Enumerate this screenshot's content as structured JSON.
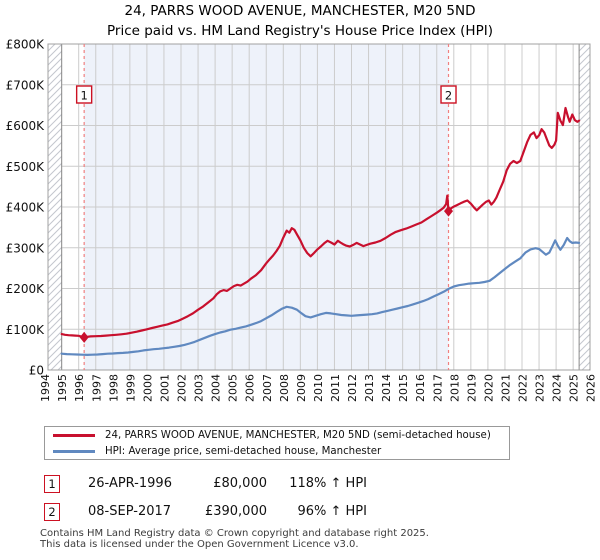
{
  "title": "24, PARRS WOOD AVENUE, MANCHESTER, M20 5ND",
  "subtitle": "Price paid vs. HM Land Registry's House Price Index (HPI)",
  "colors": {
    "price_line": "#c8102e",
    "hpi_line": "#6089c0",
    "ownership_shading": "#eef2fa",
    "grid": "#cccccc",
    "frame": "#a0a0a0",
    "hatch": "#c3c7ce",
    "hatch_boundary": "#8a8a8a",
    "dashed_marker": "#f08080",
    "marker_box_border": "#cc1122"
  },
  "chart_data": {
    "type": "line",
    "title": "24, PARRS WOOD AVENUE, MANCHESTER, M20 5ND",
    "subtitle": "Price paid vs. HM Land Registry's House Price Index (HPI)",
    "x_axis": {
      "tick_years": [
        1994,
        1995,
        1996,
        1997,
        1998,
        1999,
        2000,
        2001,
        2002,
        2003,
        2004,
        2005,
        2006,
        2007,
        2008,
        2009,
        2010,
        2011,
        2012,
        2013,
        2014,
        2015,
        2016,
        2017,
        2018,
        2019,
        2020,
        2021,
        2022,
        2023,
        2024,
        2025,
        2026
      ],
      "range_years": [
        1994.0,
        2026.6
      ]
    },
    "y_axis": {
      "tick_labels": [
        "£0",
        "£100K",
        "£200K",
        "£300K",
        "£400K",
        "£500K",
        "£600K",
        "£700K",
        "£800K"
      ],
      "tick_values_k": [
        0,
        100,
        200,
        300,
        400,
        500,
        600,
        700,
        800
      ],
      "range_k": [
        0,
        800
      ]
    },
    "hpi_data_span_years": [
      1995.0,
      2025.35
    ],
    "ownership_span_years": [
      1996.32,
      2017.69
    ],
    "sale_markers": [
      {
        "label": "1",
        "year": 1996.32,
        "value_k": 80
      },
      {
        "label": "2",
        "year": 2017.69,
        "value_k": 390
      }
    ],
    "series": [
      {
        "id": "price",
        "name": "24, PARRS WOOD AVENUE, MANCHESTER, M20 5ND (semi-detached house)",
        "color": "#c8102e",
        "points_year_valueK": [
          [
            1995.0,
            88
          ],
          [
            1995.2,
            86.5
          ],
          [
            1995.4,
            85.5
          ],
          [
            1995.6,
            85
          ],
          [
            1995.8,
            84.5
          ],
          [
            1996.0,
            84
          ],
          [
            1996.15,
            82
          ],
          [
            1996.32,
            80
          ],
          [
            1996.5,
            81.5
          ],
          [
            1996.7,
            82.5
          ],
          [
            1997.0,
            83
          ],
          [
            1997.3,
            83.5
          ],
          [
            1997.6,
            84.5
          ],
          [
            1997.9,
            85.5
          ],
          [
            1998.2,
            86.5
          ],
          [
            1998.5,
            87.5
          ],
          [
            1998.8,
            89
          ],
          [
            1999.1,
            91.5
          ],
          [
            1999.4,
            94
          ],
          [
            1999.7,
            97
          ],
          [
            2000.0,
            100
          ],
          [
            2000.3,
            103
          ],
          [
            2000.6,
            106
          ],
          [
            2000.9,
            109
          ],
          [
            2001.2,
            112
          ],
          [
            2001.5,
            116
          ],
          [
            2001.8,
            120
          ],
          [
            2002.1,
            126
          ],
          [
            2002.4,
            132
          ],
          [
            2002.7,
            139
          ],
          [
            2003.0,
            148
          ],
          [
            2003.3,
            156
          ],
          [
            2003.6,
            166
          ],
          [
            2003.9,
            176
          ],
          [
            2004.1,
            186
          ],
          [
            2004.3,
            193
          ],
          [
            2004.5,
            196
          ],
          [
            2004.7,
            194
          ],
          [
            2004.9,
            200
          ],
          [
            2005.1,
            206
          ],
          [
            2005.3,
            209
          ],
          [
            2005.5,
            207
          ],
          [
            2005.7,
            212
          ],
          [
            2005.9,
            217
          ],
          [
            2006.1,
            224
          ],
          [
            2006.4,
            233
          ],
          [
            2006.7,
            245
          ],
          [
            2007.0,
            262
          ],
          [
            2007.2,
            272
          ],
          [
            2007.4,
            281
          ],
          [
            2007.6,
            292
          ],
          [
            2007.8,
            305
          ],
          [
            2008.0,
            325
          ],
          [
            2008.2,
            342
          ],
          [
            2008.35,
            337
          ],
          [
            2008.5,
            348
          ],
          [
            2008.65,
            344
          ],
          [
            2008.8,
            333
          ],
          [
            2009.0,
            318
          ],
          [
            2009.2,
            300
          ],
          [
            2009.4,
            287
          ],
          [
            2009.6,
            279
          ],
          [
            2009.8,
            287
          ],
          [
            2010.0,
            296
          ],
          [
            2010.2,
            303
          ],
          [
            2010.4,
            311
          ],
          [
            2010.6,
            317
          ],
          [
            2010.8,
            313
          ],
          [
            2011.0,
            308
          ],
          [
            2011.2,
            317
          ],
          [
            2011.35,
            313
          ],
          [
            2011.5,
            309
          ],
          [
            2011.7,
            305
          ],
          [
            2011.9,
            303
          ],
          [
            2012.1,
            307
          ],
          [
            2012.3,
            312
          ],
          [
            2012.5,
            308
          ],
          [
            2012.7,
            304
          ],
          [
            2012.9,
            307
          ],
          [
            2013.1,
            310
          ],
          [
            2013.4,
            313
          ],
          [
            2013.7,
            317
          ],
          [
            2014.0,
            324
          ],
          [
            2014.3,
            332
          ],
          [
            2014.6,
            339
          ],
          [
            2014.9,
            343
          ],
          [
            2015.2,
            347
          ],
          [
            2015.5,
            352
          ],
          [
            2015.8,
            357
          ],
          [
            2016.1,
            362
          ],
          [
            2016.4,
            370
          ],
          [
            2016.7,
            378
          ],
          [
            2017.0,
            386
          ],
          [
            2017.2,
            392
          ],
          [
            2017.4,
            398
          ],
          [
            2017.55,
            407
          ],
          [
            2017.62,
            428
          ],
          [
            2017.69,
            390
          ],
          [
            2017.85,
            397
          ],
          [
            2018.0,
            401
          ],
          [
            2018.2,
            405
          ],
          [
            2018.4,
            409
          ],
          [
            2018.6,
            413
          ],
          [
            2018.8,
            416
          ],
          [
            2019.0,
            408
          ],
          [
            2019.2,
            398
          ],
          [
            2019.35,
            392
          ],
          [
            2019.5,
            398
          ],
          [
            2019.7,
            406
          ],
          [
            2019.9,
            413
          ],
          [
            2020.05,
            416
          ],
          [
            2020.2,
            406
          ],
          [
            2020.35,
            413
          ],
          [
            2020.5,
            423
          ],
          [
            2020.7,
            443
          ],
          [
            2020.9,
            462
          ],
          [
            2021.1,
            490
          ],
          [
            2021.3,
            506
          ],
          [
            2021.5,
            513
          ],
          [
            2021.7,
            508
          ],
          [
            2021.9,
            513
          ],
          [
            2022.1,
            536
          ],
          [
            2022.3,
            559
          ],
          [
            2022.5,
            577
          ],
          [
            2022.7,
            583
          ],
          [
            2022.85,
            569
          ],
          [
            2023.0,
            576
          ],
          [
            2023.15,
            591
          ],
          [
            2023.3,
            583
          ],
          [
            2023.45,
            567
          ],
          [
            2023.6,
            551
          ],
          [
            2023.75,
            545
          ],
          [
            2023.9,
            553
          ],
          [
            2024.0,
            563
          ],
          [
            2024.1,
            631
          ],
          [
            2024.25,
            612
          ],
          [
            2024.4,
            601
          ],
          [
            2024.55,
            643
          ],
          [
            2024.7,
            621
          ],
          [
            2024.8,
            609
          ],
          [
            2024.95,
            627
          ],
          [
            2025.1,
            613
          ],
          [
            2025.25,
            609
          ],
          [
            2025.35,
            612
          ]
        ]
      },
      {
        "id": "hpi",
        "name": "HPI: Average price, semi-detached house, Manchester",
        "color": "#6089c0",
        "points_year_valueK": [
          [
            1995.0,
            40
          ],
          [
            1995.3,
            39
          ],
          [
            1995.6,
            38.5
          ],
          [
            1995.9,
            38
          ],
          [
            1996.2,
            37.5
          ],
          [
            1996.5,
            37
          ],
          [
            1996.8,
            37.5
          ],
          [
            1997.1,
            38
          ],
          [
            1997.4,
            39
          ],
          [
            1997.7,
            40
          ],
          [
            1998.0,
            40.5
          ],
          [
            1998.3,
            41.5
          ],
          [
            1998.6,
            42
          ],
          [
            1998.9,
            43
          ],
          [
            1999.2,
            44.5
          ],
          [
            1999.5,
            46
          ],
          [
            1999.8,
            48
          ],
          [
            2000.1,
            49.5
          ],
          [
            2000.4,
            51
          ],
          [
            2000.7,
            52
          ],
          [
            2001.0,
            53.5
          ],
          [
            2001.3,
            55
          ],
          [
            2001.6,
            57
          ],
          [
            2001.9,
            59
          ],
          [
            2002.2,
            61.5
          ],
          [
            2002.5,
            65
          ],
          [
            2002.8,
            69
          ],
          [
            2003.1,
            74
          ],
          [
            2003.4,
            79
          ],
          [
            2003.7,
            84
          ],
          [
            2004.0,
            88
          ],
          [
            2004.3,
            92
          ],
          [
            2004.6,
            95
          ],
          [
            2004.9,
            99
          ],
          [
            2005.2,
            101
          ],
          [
            2005.5,
            104
          ],
          [
            2005.8,
            107
          ],
          [
            2006.1,
            111
          ],
          [
            2006.4,
            115
          ],
          [
            2006.7,
            120
          ],
          [
            2007.0,
            127
          ],
          [
            2007.3,
            134
          ],
          [
            2007.6,
            142
          ],
          [
            2007.9,
            150
          ],
          [
            2008.2,
            155
          ],
          [
            2008.5,
            153
          ],
          [
            2008.8,
            148
          ],
          [
            2009.0,
            141
          ],
          [
            2009.3,
            132
          ],
          [
            2009.6,
            129
          ],
          [
            2009.9,
            133
          ],
          [
            2010.2,
            137
          ],
          [
            2010.5,
            140
          ],
          [
            2010.8,
            139
          ],
          [
            2011.1,
            137
          ],
          [
            2011.4,
            135
          ],
          [
            2011.7,
            134
          ],
          [
            2012.0,
            133
          ],
          [
            2012.3,
            134
          ],
          [
            2012.6,
            135
          ],
          [
            2012.9,
            136
          ],
          [
            2013.2,
            137
          ],
          [
            2013.5,
            139
          ],
          [
            2013.8,
            142
          ],
          [
            2014.1,
            145
          ],
          [
            2014.4,
            148
          ],
          [
            2014.7,
            151
          ],
          [
            2015.0,
            154
          ],
          [
            2015.3,
            157
          ],
          [
            2015.6,
            161
          ],
          [
            2015.9,
            165
          ],
          [
            2016.2,
            169
          ],
          [
            2016.5,
            174
          ],
          [
            2016.8,
            180
          ],
          [
            2017.1,
            186
          ],
          [
            2017.4,
            192
          ],
          [
            2017.69,
            199
          ],
          [
            2018.0,
            205
          ],
          [
            2018.3,
            208
          ],
          [
            2018.6,
            210
          ],
          [
            2018.9,
            212
          ],
          [
            2019.2,
            213
          ],
          [
            2019.5,
            214
          ],
          [
            2019.8,
            216
          ],
          [
            2020.1,
            219
          ],
          [
            2020.4,
            228
          ],
          [
            2020.7,
            238
          ],
          [
            2021.0,
            248
          ],
          [
            2021.3,
            258
          ],
          [
            2021.6,
            266
          ],
          [
            2021.9,
            274
          ],
          [
            2022.2,
            288
          ],
          [
            2022.5,
            296
          ],
          [
            2022.8,
            299
          ],
          [
            2023.0,
            297
          ],
          [
            2023.2,
            290
          ],
          [
            2023.4,
            283
          ],
          [
            2023.6,
            288
          ],
          [
            2023.8,
            305
          ],
          [
            2023.95,
            318
          ],
          [
            2024.1,
            305
          ],
          [
            2024.25,
            295
          ],
          [
            2024.45,
            307
          ],
          [
            2024.65,
            324
          ],
          [
            2024.8,
            316
          ],
          [
            2024.95,
            312
          ],
          [
            2025.15,
            313
          ],
          [
            2025.35,
            312
          ]
        ]
      }
    ]
  },
  "legend": {
    "items": [
      {
        "label": "24, PARRS WOOD AVENUE, MANCHESTER, M20 5ND (semi-detached house)",
        "color": "#c8102e"
      },
      {
        "label": "HPI: Average price, semi-detached house, Manchester",
        "color": "#6089c0"
      }
    ]
  },
  "transactions": [
    {
      "num": "1",
      "date": "26-APR-1996",
      "price": "£80,000",
      "vs_hpi": "118% ↑ HPI"
    },
    {
      "num": "2",
      "date": "08-SEP-2017",
      "price": "£390,000",
      "vs_hpi": "96% ↑ HPI"
    }
  ],
  "footer": {
    "line1": "Contains HM Land Registry data © Crown copyright and database right 2025.",
    "line2": "This data is licensed under the Open Government Licence v3.0."
  }
}
